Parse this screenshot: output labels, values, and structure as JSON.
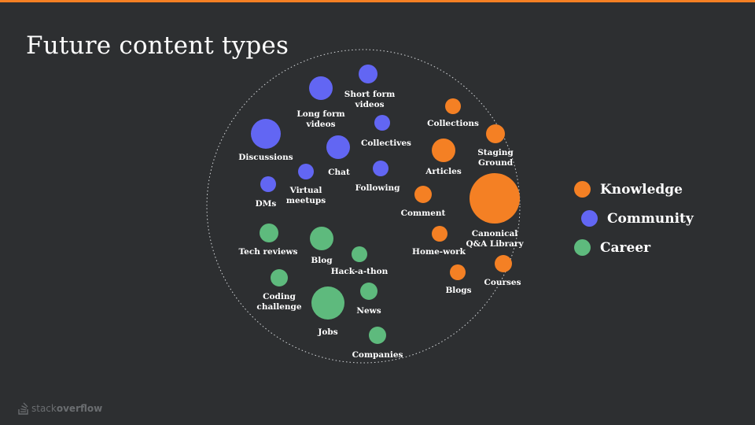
{
  "slide": {
    "title": "Future content types",
    "logo_text_light": "stack",
    "logo_text_bold": "overflow"
  },
  "colors": {
    "Knowledge": "#f48024",
    "Community": "#6266f3",
    "Career": "#5eba7d",
    "accent_bar": "#f48024",
    "background": "#2d2f31"
  },
  "legend": [
    {
      "label": "Knowledge",
      "category": "Knowledge"
    },
    {
      "label": "Community",
      "category": "Community"
    },
    {
      "label": "Career",
      "category": "Career"
    }
  ],
  "bubbles": [
    {
      "name": "long-form-videos",
      "category": "Community",
      "lines": [
        "Long form",
        "videos"
      ]
    },
    {
      "name": "short-form-videos",
      "category": "Community",
      "lines": [
        "Short form",
        "videos"
      ]
    },
    {
      "name": "discussions",
      "category": "Community",
      "lines": [
        "Discussions"
      ]
    },
    {
      "name": "collectives",
      "category": "Community",
      "lines": [
        "Collectives"
      ]
    },
    {
      "name": "chat",
      "category": "Community",
      "lines": [
        "Chat"
      ]
    },
    {
      "name": "virtual-meetups",
      "category": "Community",
      "lines": [
        "Virtual",
        "meetups"
      ]
    },
    {
      "name": "following",
      "category": "Community",
      "lines": [
        "Following"
      ]
    },
    {
      "name": "dms",
      "category": "Community",
      "lines": [
        "DMs"
      ]
    },
    {
      "name": "collections",
      "category": "Knowledge",
      "lines": [
        "Collections"
      ]
    },
    {
      "name": "staging-ground",
      "category": "Knowledge",
      "lines": [
        "Staging",
        "Ground"
      ]
    },
    {
      "name": "articles",
      "category": "Knowledge",
      "lines": [
        "Articles"
      ]
    },
    {
      "name": "canonical-qa-library",
      "category": "Knowledge",
      "lines": [
        "Canonical",
        "Q&A Library"
      ]
    },
    {
      "name": "comment",
      "category": "Knowledge",
      "lines": [
        "Comment"
      ]
    },
    {
      "name": "home-work",
      "category": "Knowledge",
      "lines": [
        "Home-work"
      ]
    },
    {
      "name": "courses",
      "category": "Knowledge",
      "lines": [
        "Courses"
      ]
    },
    {
      "name": "blogs",
      "category": "Knowledge",
      "lines": [
        "Blogs"
      ]
    },
    {
      "name": "tech-reviews",
      "category": "Career",
      "lines": [
        "Tech reviews"
      ]
    },
    {
      "name": "blog",
      "category": "Career",
      "lines": [
        "Blog"
      ]
    },
    {
      "name": "hack-a-thon",
      "category": "Career",
      "lines": [
        "Hack-a-thon"
      ]
    },
    {
      "name": "coding-challenge",
      "category": "Career",
      "lines": [
        "Coding",
        "challenge"
      ]
    },
    {
      "name": "news",
      "category": "Career",
      "lines": [
        "News"
      ]
    },
    {
      "name": "jobs",
      "category": "Career",
      "lines": [
        "Jobs"
      ]
    },
    {
      "name": "companies",
      "category": "Career",
      "lines": [
        "Companies"
      ]
    }
  ]
}
